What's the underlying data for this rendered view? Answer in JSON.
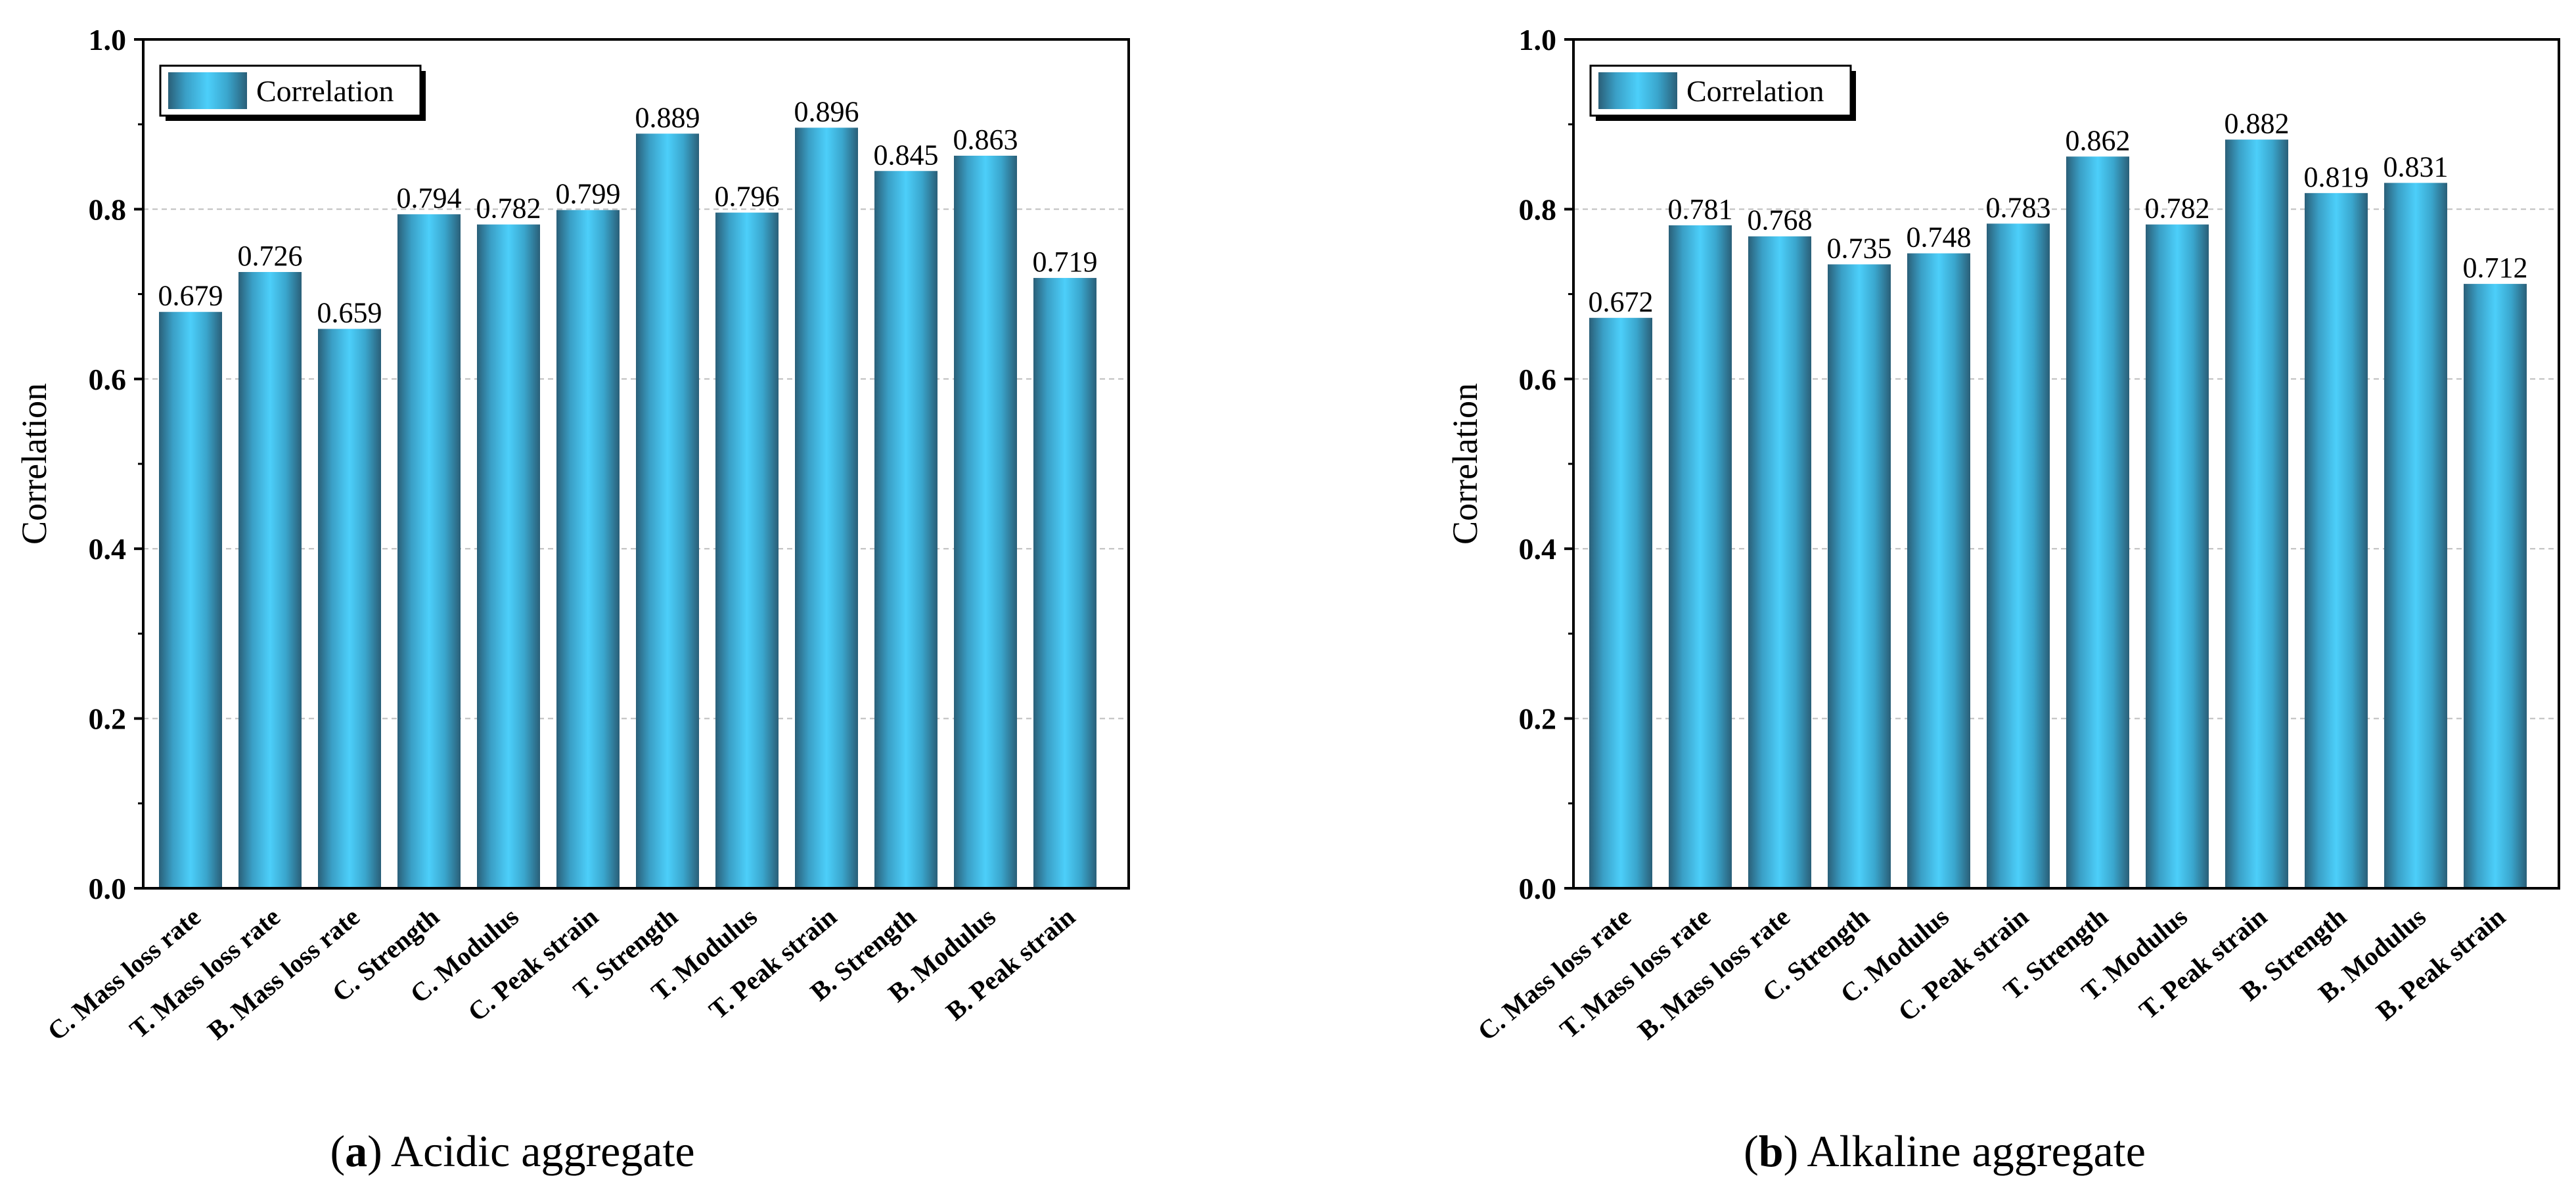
{
  "chart_data": [
    {
      "type": "bar",
      "panel_label": "a",
      "caption": "Acidic aggregate",
      "categories": [
        "C. Mass loss rate",
        "T. Mass loss rate",
        "B. Mass loss rate",
        "C. Strength",
        "C. Modulus",
        "C. Peak strain",
        "T. Strength",
        "T. Modulus",
        "T. Peak strain",
        "B. Strength",
        "B. Modulus",
        "B. Peak strain"
      ],
      "values": [
        0.679,
        0.726,
        0.659,
        0.794,
        0.782,
        0.799,
        0.889,
        0.796,
        0.896,
        0.845,
        0.863,
        0.719
      ],
      "value_labels": [
        "0.679",
        "0.726",
        "0.659",
        "0.794",
        "0.782",
        "0.799",
        "0.889",
        "0.796",
        "0.896",
        "0.845",
        "0.863",
        "0.719"
      ],
      "ylabel": "Correlation",
      "xlabel": "",
      "ylim": [
        0,
        1.0
      ],
      "yticks": [
        "0.0",
        "0.2",
        "0.4",
        "0.6",
        "0.8",
        "1.0"
      ],
      "legend": "Correlation",
      "legend_position": "top-left",
      "grid": "horizontal dashed",
      "color": "#44c4f0"
    },
    {
      "type": "bar",
      "panel_label": "b",
      "caption": "Alkaline aggregate",
      "categories": [
        "C. Mass loss rate",
        "T. Mass loss rate",
        "B. Mass loss rate",
        "C. Strength",
        "C. Modulus",
        "C. Peak strain",
        "T. Strength",
        "T. Modulus",
        "T. Peak strain",
        "B. Strength",
        "B. Modulus",
        "B. Peak strain"
      ],
      "values": [
        0.672,
        0.781,
        0.768,
        0.735,
        0.748,
        0.783,
        0.862,
        0.782,
        0.882,
        0.819,
        0.831,
        0.712
      ],
      "value_labels": [
        "0.672",
        "0.781",
        "0.768",
        "0.735",
        "0.748",
        "0.783",
        "0.862",
        "0.782",
        "0.882",
        "0.819",
        "0.831",
        "0.712"
      ],
      "ylabel": "Correlation",
      "xlabel": "",
      "ylim": [
        0,
        1.0
      ],
      "yticks": [
        "0.0",
        "0.2",
        "0.4",
        "0.6",
        "0.8",
        "1.0"
      ],
      "legend": "Correlation",
      "legend_position": "top-left",
      "grid": "horizontal dashed",
      "color": "#44c4f0"
    }
  ]
}
